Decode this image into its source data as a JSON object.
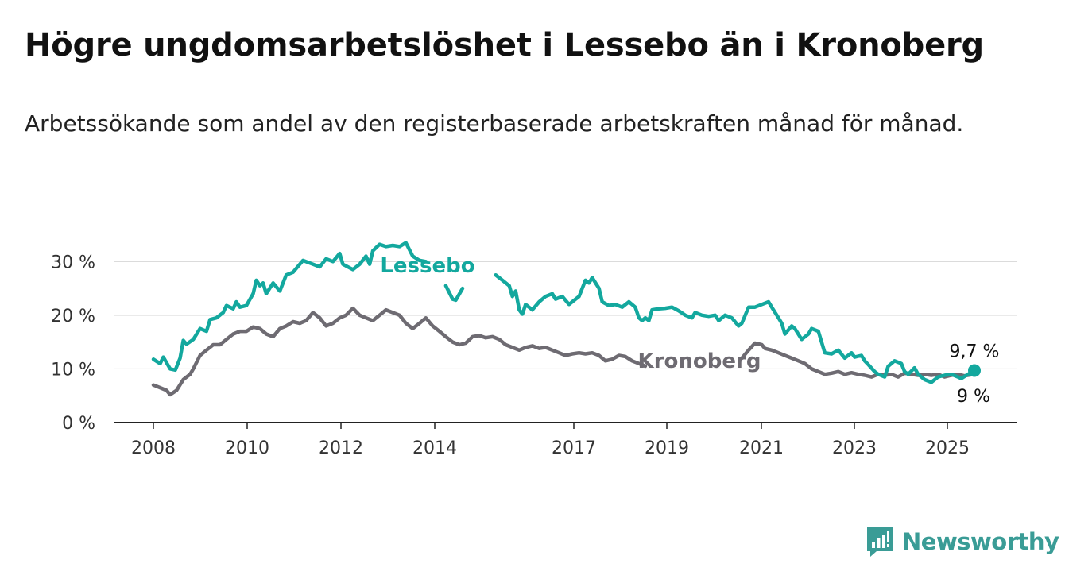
{
  "header": {
    "title": "Högre ungdomsarbetslöshet i Lessebo än i Kronoberg",
    "subtitle": "Arbetssökande som andel av den registerbaserade arbetskraften månad för månad."
  },
  "brand": {
    "name": "Newsworthy",
    "color": "#3a9c96"
  },
  "chart_data": {
    "type": "line",
    "title": "Högre ungdomsarbetslöshet i Lessebo än i Kronoberg",
    "subtitle": "Arbetssökande som andel av den registerbaserade arbetskraften månad för månad.",
    "ylim": [
      0,
      33
    ],
    "xlim": [
      2008,
      2025.7
    ],
    "yticks": [
      0,
      10,
      20,
      30
    ],
    "ytick_labels": [
      "0 %",
      "10 %",
      "20 %",
      "30 %"
    ],
    "xticks": [
      2008,
      2010,
      2012,
      2014,
      2017,
      2019,
      2021,
      2023,
      2025
    ],
    "xtick_labels": [
      "2008",
      "2010",
      "2012",
      "2014",
      "2017",
      "2019",
      "2021",
      "2023",
      "2025"
    ],
    "grid": true,
    "series": [
      {
        "name": "Lessebo",
        "color": "#13a89e",
        "last_label": "9,7 %",
        "points": [
          [
            2008.0,
            11.8
          ],
          [
            2008.17,
            11.0
          ],
          [
            2008.25,
            12.2
          ],
          [
            2008.42,
            10.0
          ],
          [
            2008.55,
            9.8
          ],
          [
            2008.67,
            12.0
          ],
          [
            2008.75,
            15.3
          ],
          [
            2008.83,
            14.6
          ],
          [
            2009.0,
            15.5
          ],
          [
            2009.17,
            17.5
          ],
          [
            2009.33,
            17.0
          ],
          [
            2009.42,
            19.2
          ],
          [
            2009.58,
            19.5
          ],
          [
            2009.75,
            20.5
          ],
          [
            2009.83,
            21.8
          ],
          [
            2010.0,
            21.2
          ],
          [
            2010.08,
            22.5
          ],
          [
            2010.17,
            21.5
          ],
          [
            2010.33,
            21.8
          ],
          [
            2010.5,
            24.0
          ],
          [
            2010.58,
            26.5
          ],
          [
            2010.67,
            25.5
          ],
          [
            2010.75,
            26.0
          ],
          [
            2010.83,
            24.0
          ],
          [
            2011.0,
            26.0
          ],
          [
            2011.17,
            24.5
          ],
          [
            2011.33,
            27.5
          ],
          [
            2011.5,
            28.0
          ],
          [
            2011.67,
            29.5
          ],
          [
            2011.75,
            30.2
          ],
          [
            2012.0,
            29.5
          ],
          [
            2012.17,
            29.0
          ],
          [
            2012.33,
            30.5
          ],
          [
            2012.5,
            30.0
          ],
          [
            2012.67,
            31.5
          ],
          [
            2012.75,
            29.5
          ],
          [
            2013.0,
            28.5
          ],
          [
            2013.17,
            29.5
          ],
          [
            2013.33,
            31.0
          ],
          [
            2013.42,
            29.5
          ],
          [
            2013.5,
            32.0
          ],
          [
            2013.67,
            33.2
          ],
          [
            2013.83,
            32.8
          ],
          [
            2014.0,
            33.0
          ],
          [
            2014.17,
            32.8
          ],
          [
            2014.33,
            33.5
          ],
          [
            2014.5,
            31.0
          ],
          [
            2014.67,
            30.2
          ],
          [
            2014.83,
            30.0
          ],
          null,
          [
            2015.33,
            25.5
          ],
          [
            2015.5,
            23.0
          ],
          [
            2015.58,
            22.8
          ],
          [
            2015.75,
            25.0
          ],
          null,
          [
            2016.58,
            27.5
          ],
          [
            2016.75,
            26.5
          ],
          [
            2016.92,
            25.5
          ],
          [
            2017.0,
            23.5
          ],
          [
            2017.08,
            24.5
          ],
          [
            2017.17,
            21.0
          ],
          [
            2017.25,
            20.2
          ],
          [
            2017.33,
            22.0
          ],
          [
            2017.5,
            21.0
          ],
          [
            2017.67,
            22.5
          ],
          [
            2017.83,
            23.5
          ],
          [
            2018.0,
            24.0
          ],
          [
            2018.08,
            23.0
          ],
          [
            2018.25,
            23.5
          ],
          [
            2018.42,
            22.0
          ],
          [
            2018.5,
            22.5
          ],
          [
            2018.67,
            23.5
          ],
          [
            2018.83,
            26.5
          ],
          [
            2018.92,
            26.0
          ],
          [
            2019.0,
            27.0
          ],
          [
            2019.17,
            25.0
          ],
          [
            2019.25,
            22.5
          ],
          [
            2019.42,
            21.8
          ],
          [
            2019.58,
            22.0
          ],
          [
            2019.75,
            21.5
          ],
          [
            2019.92,
            22.5
          ],
          [
            2020.08,
            21.5
          ],
          [
            2020.17,
            19.5
          ],
          [
            2020.25,
            19.0
          ],
          [
            2020.33,
            19.5
          ],
          [
            2020.42,
            19.0
          ],
          [
            2020.5,
            21.0
          ],
          [
            2020.67,
            21.2
          ],
          [
            2020.83,
            21.3
          ],
          [
            2021.0,
            21.5
          ],
          [
            2021.17,
            20.8
          ],
          [
            2021.33,
            20.0
          ],
          [
            2021.5,
            19.5
          ],
          [
            2021.58,
            20.5
          ],
          [
            2021.75,
            20.0
          ],
          [
            2021.92,
            19.8
          ],
          [
            2022.08,
            20.0
          ],
          [
            2022.17,
            19.0
          ],
          [
            2022.33,
            20.0
          ],
          [
            2022.5,
            19.5
          ],
          [
            2022.67,
            18.0
          ],
          [
            2022.75,
            18.5
          ],
          [
            2022.92,
            21.5
          ],
          [
            2023.08,
            21.5
          ],
          [
            2023.25,
            22.0
          ],
          [
            2023.42,
            22.5
          ],
          [
            2023.5,
            21.5
          ],
          [
            2023.67,
            19.5
          ],
          [
            2023.75,
            18.5
          ],
          [
            2023.83,
            16.5
          ],
          [
            2024.0,
            18.0
          ],
          [
            2024.08,
            17.5
          ],
          [
            2024.25,
            15.5
          ],
          [
            2024.42,
            16.5
          ],
          [
            2024.5,
            17.5
          ],
          [
            2024.67,
            17.0
          ],
          [
            2024.83,
            13.0
          ],
          [
            2025.0,
            12.8
          ],
          [
            2025.17,
            13.5
          ],
          [
            2025.33,
            12.0
          ],
          [
            2025.5,
            13.0
          ],
          [
            2025.58,
            12.2
          ],
          [
            2025.75,
            12.5
          ],
          [
            2025.83,
            11.5
          ],
          [
            2025.92,
            10.8
          ],
          [
            2026.08,
            9.5
          ],
          [
            2026.17,
            9.0
          ],
          [
            2026.33,
            8.5
          ],
          [
            2026.42,
            10.5
          ],
          [
            2026.58,
            11.5
          ],
          [
            2026.75,
            11.0
          ],
          [
            2026.83,
            9.5
          ],
          [
            2026.92,
            9.0
          ],
          [
            2027.08,
            10.2
          ],
          [
            2027.17,
            9.0
          ],
          [
            2027.33,
            8.0
          ],
          [
            2027.5,
            7.5
          ],
          [
            2027.67,
            8.5
          ],
          [
            2027.83,
            8.8
          ],
          [
            2028.0,
            9.0
          ],
          [
            2028.17,
            8.5
          ],
          [
            2028.25,
            8.2
          ],
          [
            2028.42,
            9.0
          ],
          [
            2028.58,
            9.7
          ]
        ]
      },
      {
        "name": "Kronoberg",
        "color": "#6e6b72",
        "last_label": "9 %",
        "points": [
          [
            2008.0,
            7.0
          ],
          [
            2008.17,
            6.5
          ],
          [
            2008.33,
            6.0
          ],
          [
            2008.42,
            5.2
          ],
          [
            2008.58,
            6.0
          ],
          [
            2008.75,
            8.0
          ],
          [
            2008.92,
            9.0
          ],
          [
            2009.0,
            10.0
          ],
          [
            2009.17,
            12.5
          ],
          [
            2009.33,
            13.5
          ],
          [
            2009.5,
            14.5
          ],
          [
            2009.67,
            14.5
          ],
          [
            2009.83,
            15.5
          ],
          [
            2010.0,
            16.5
          ],
          [
            2010.17,
            17.0
          ],
          [
            2010.33,
            17.0
          ],
          [
            2010.5,
            17.8
          ],
          [
            2010.67,
            17.5
          ],
          [
            2010.83,
            16.5
          ],
          [
            2011.0,
            16.0
          ],
          [
            2011.17,
            17.5
          ],
          [
            2011.33,
            18.0
          ],
          [
            2011.5,
            18.8
          ],
          [
            2011.67,
            18.5
          ],
          [
            2011.83,
            19.0
          ],
          [
            2012.0,
            20.5
          ],
          [
            2012.17,
            19.5
          ],
          [
            2012.33,
            18.0
          ],
          [
            2012.5,
            18.5
          ],
          [
            2012.67,
            19.5
          ],
          [
            2012.83,
            20.0
          ],
          [
            2013.0,
            21.3
          ],
          [
            2013.17,
            20.0
          ],
          [
            2013.33,
            19.5
          ],
          [
            2013.5,
            19.0
          ],
          [
            2013.67,
            20.0
          ],
          [
            2013.83,
            21.0
          ],
          [
            2014.0,
            20.5
          ],
          [
            2014.17,
            20.0
          ],
          [
            2014.33,
            18.5
          ],
          [
            2014.5,
            17.5
          ],
          [
            2014.67,
            18.5
          ],
          [
            2014.83,
            19.5
          ],
          [
            2015.0,
            18.0
          ],
          [
            2015.17,
            17.0
          ],
          [
            2015.33,
            16.0
          ],
          [
            2015.5,
            15.0
          ],
          [
            2015.67,
            14.5
          ],
          [
            2015.83,
            14.8
          ],
          [
            2016.0,
            16.0
          ],
          [
            2016.17,
            16.2
          ],
          [
            2016.33,
            15.8
          ],
          [
            2016.5,
            16.0
          ],
          [
            2016.67,
            15.5
          ],
          [
            2016.83,
            14.5
          ],
          [
            2017.0,
            14.0
          ],
          [
            2017.17,
            13.5
          ],
          [
            2017.33,
            14.0
          ],
          [
            2017.5,
            14.3
          ],
          [
            2017.67,
            13.8
          ],
          [
            2017.83,
            14.0
          ],
          [
            2018.0,
            13.5
          ],
          [
            2018.17,
            13.0
          ],
          [
            2018.33,
            12.5
          ],
          [
            2018.5,
            12.8
          ],
          [
            2018.67,
            13.0
          ],
          [
            2018.83,
            12.8
          ],
          [
            2019.0,
            13.0
          ],
          [
            2019.17,
            12.5
          ],
          [
            2019.33,
            11.5
          ],
          [
            2019.5,
            11.8
          ],
          [
            2019.67,
            12.5
          ],
          [
            2019.83,
            12.3
          ],
          [
            2020.0,
            11.5
          ],
          [
            2020.17,
            11.0
          ],
          [
            2020.33,
            10.5
          ],
          null,
          [
            2022.75,
            12.0
          ],
          [
            2022.92,
            13.5
          ],
          [
            2023.08,
            14.8
          ],
          [
            2023.25,
            14.5
          ],
          [
            2023.33,
            13.8
          ],
          [
            2023.5,
            13.5
          ],
          [
            2023.67,
            13.0
          ],
          [
            2023.83,
            12.5
          ],
          [
            2024.0,
            12.0
          ],
          [
            2024.17,
            11.5
          ],
          [
            2024.33,
            11.0
          ],
          [
            2024.5,
            10.0
          ],
          [
            2024.67,
            9.5
          ],
          [
            2024.83,
            9.0
          ],
          [
            2025.0,
            9.2
          ],
          [
            2025.17,
            9.5
          ],
          [
            2025.33,
            9.0
          ],
          [
            2025.5,
            9.3
          ],
          [
            2025.67,
            9.0
          ],
          [
            2025.83,
            8.8
          ],
          [
            2026.0,
            8.5
          ],
          [
            2026.17,
            9.0
          ],
          [
            2026.33,
            8.8
          ],
          [
            2026.5,
            9.0
          ],
          [
            2026.67,
            8.5
          ],
          [
            2026.83,
            9.2
          ],
          [
            2027.0,
            9.0
          ],
          [
            2027.17,
            8.8
          ],
          [
            2027.33,
            9.0
          ],
          [
            2027.5,
            8.8
          ],
          [
            2027.67,
            9.0
          ],
          [
            2027.83,
            8.5
          ],
          [
            2028.0,
            8.8
          ],
          [
            2028.17,
            9.0
          ],
          [
            2028.33,
            8.7
          ],
          [
            2028.58,
            9.0
          ]
        ]
      }
    ]
  }
}
